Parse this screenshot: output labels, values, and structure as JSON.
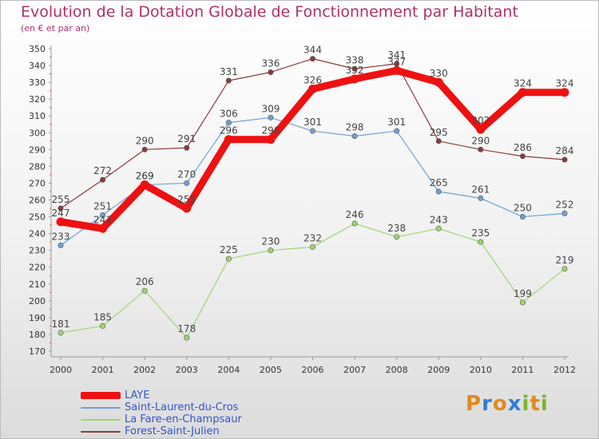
{
  "title": "Evolution de la Dotation Globale de Fonctionnement par Habitant",
  "subtitle": "(en € et par an)",
  "brand": {
    "text": "Proxiti",
    "letters": [
      {
        "ch": "P",
        "color": "#e08a1e"
      },
      {
        "ch": "r",
        "color": "#2f7fd6"
      },
      {
        "ch": "o",
        "color": "#e08a1e"
      },
      {
        "ch": "x",
        "color": "#2f7fd6"
      },
      {
        "ch": "i",
        "color": "#7ab52a"
      },
      {
        "ch": "t",
        "color": "#e08a1e"
      },
      {
        "ch": "i",
        "color": "#7ab52a"
      }
    ]
  },
  "chart_data": {
    "type": "line",
    "title": "Evolution de la Dotation Globale de Fonctionnement par Habitant",
    "ylabel": "(en € et par an)",
    "xlabel": "",
    "x": [
      "2000",
      "2001",
      "2002",
      "2003",
      "2004",
      "2005",
      "2006",
      "2007",
      "2008",
      "2009",
      "2010",
      "2011",
      "2012"
    ],
    "ylim": [
      170,
      350
    ],
    "ytick_step": 10,
    "grid": false,
    "series": [
      {
        "name": "LAYE",
        "color": "#ee1111",
        "width": "thick",
        "values": [
          247,
          243,
          269,
          255,
          296,
          296,
          326,
          332,
          337,
          330,
          302,
          324,
          324
        ]
      },
      {
        "name": "Saint-Laurent-du-Cros",
        "color": "#6fa0d6",
        "width": "thin",
        "values": [
          233,
          251,
          269,
          270,
          306,
          309,
          301,
          298,
          301,
          265,
          261,
          250,
          252
        ]
      },
      {
        "name": "La Fare-en-Champsaur",
        "color": "#9fd66f",
        "width": "thin",
        "values": [
          181,
          185,
          206,
          178,
          225,
          230,
          232,
          246,
          238,
          243,
          235,
          199,
          219
        ]
      },
      {
        "name": "Forest-Saint-Julien",
        "color": "#8a3c3c",
        "width": "thin",
        "values": [
          255,
          272,
          290,
          291,
          331,
          336,
          344,
          338,
          341,
          295,
          290,
          286,
          284
        ]
      }
    ]
  }
}
